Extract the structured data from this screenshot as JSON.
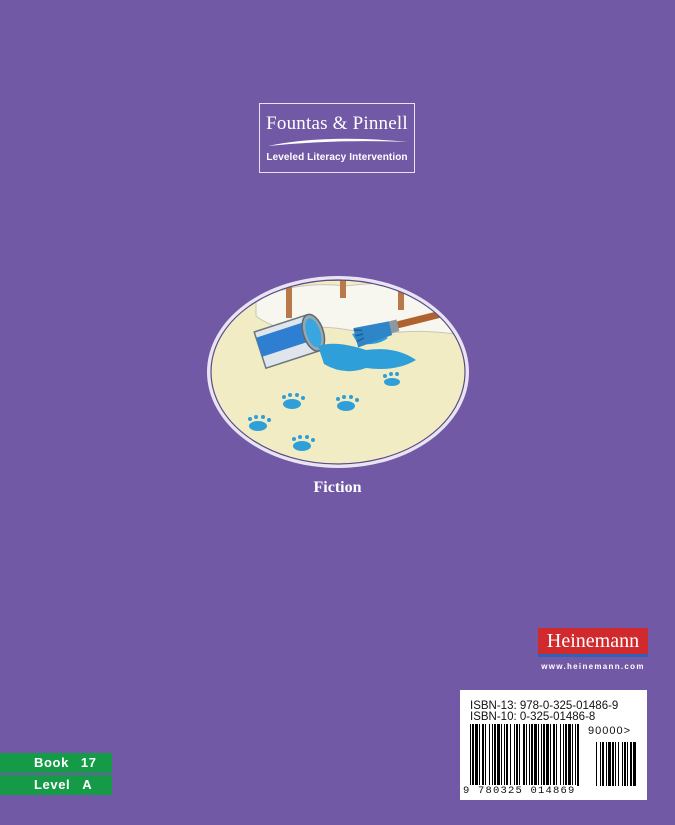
{
  "series_logo": {
    "brand": "Fountas & Pinnell",
    "program": "Leveled Literacy Intervention"
  },
  "illustration": {
    "subject": "tipped-over paint can and brush with spilled blue paint and paw prints"
  },
  "genre": "Fiction",
  "publisher": {
    "name": "Heinemann",
    "url": "www.heinemann.com"
  },
  "barcode": {
    "isbn13": "ISBN-13: 978-0-325-01486-9",
    "isbn10": "ISBN-10: 0-325-01486-8",
    "price_code": "90000>",
    "number": "9 780325 014869"
  },
  "tags": {
    "book_label": "Book",
    "book_value": "17",
    "level_label": "Level",
    "level_value": "A"
  },
  "colors": {
    "background": "#7159a6",
    "tag_green": "#159b48",
    "publisher_red": "#d02a2e",
    "paint_blue": "#2e9fd8"
  }
}
